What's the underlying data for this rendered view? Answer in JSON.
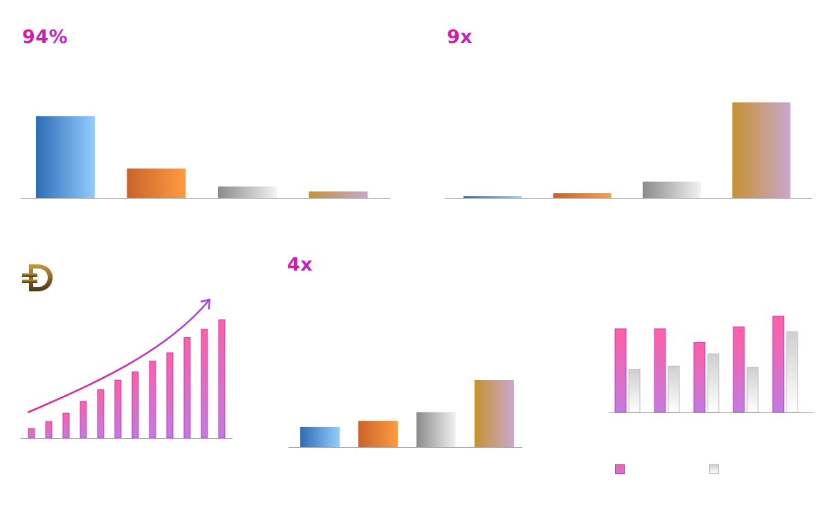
{
  "stats": {
    "top_left": "94%",
    "top_right": "9x",
    "bottom_middle": "4x"
  },
  "colors": {
    "blue": [
      "#2e6db5",
      "#93ccff"
    ],
    "orange": [
      "#c8642a",
      "#ff9b40"
    ],
    "gray": [
      "#8a8a8a",
      "#f2f2f2"
    ],
    "gold": [
      "#c6922f",
      "#c9a7cf"
    ],
    "pink": [
      "#ff5fa2",
      "#c27be0"
    ],
    "silver": [
      "#cfcfcf",
      "#ffffff"
    ],
    "axis": "#9a9a9a",
    "arrow": [
      "#ec1e79",
      "#a83ee6"
    ]
  },
  "icons": {
    "logo": "dogecoin-icon",
    "trend": "trend-arrow-icon"
  },
  "chart_data": [
    {
      "id": "chart1",
      "type": "bar",
      "values": [
        100,
        36,
        14,
        8
      ],
      "ylim": [
        0,
        100
      ],
      "fills": [
        "blue",
        "orange",
        "gray",
        "gold"
      ]
    },
    {
      "id": "chart2",
      "type": "bar",
      "values": [
        2,
        5,
        17,
        100
      ],
      "ylim": [
        0,
        100
      ],
      "fills": [
        "blue",
        "orange",
        "gray",
        "gold"
      ]
    },
    {
      "id": "chart3",
      "type": "bar",
      "values": [
        8,
        14,
        21,
        31,
        41,
        49,
        56,
        65,
        72,
        85,
        92,
        100
      ],
      "ylim": [
        0,
        100
      ],
      "fills": [
        "pink"
      ],
      "trend": "increasing"
    },
    {
      "id": "chart4",
      "type": "bar",
      "values": [
        30,
        39,
        52,
        100
      ],
      "ylim": [
        0,
        100
      ],
      "fills": [
        "blue",
        "orange",
        "gray",
        "gold"
      ]
    },
    {
      "id": "chart5",
      "type": "bar",
      "series": [
        {
          "values": [
            87,
            87,
            73,
            89,
            100
          ],
          "fill": "pink"
        },
        {
          "values": [
            45,
            48,
            61,
            47,
            84
          ],
          "fill": "silver"
        }
      ],
      "ylim": [
        0,
        100
      ],
      "legend": "bottom"
    }
  ]
}
